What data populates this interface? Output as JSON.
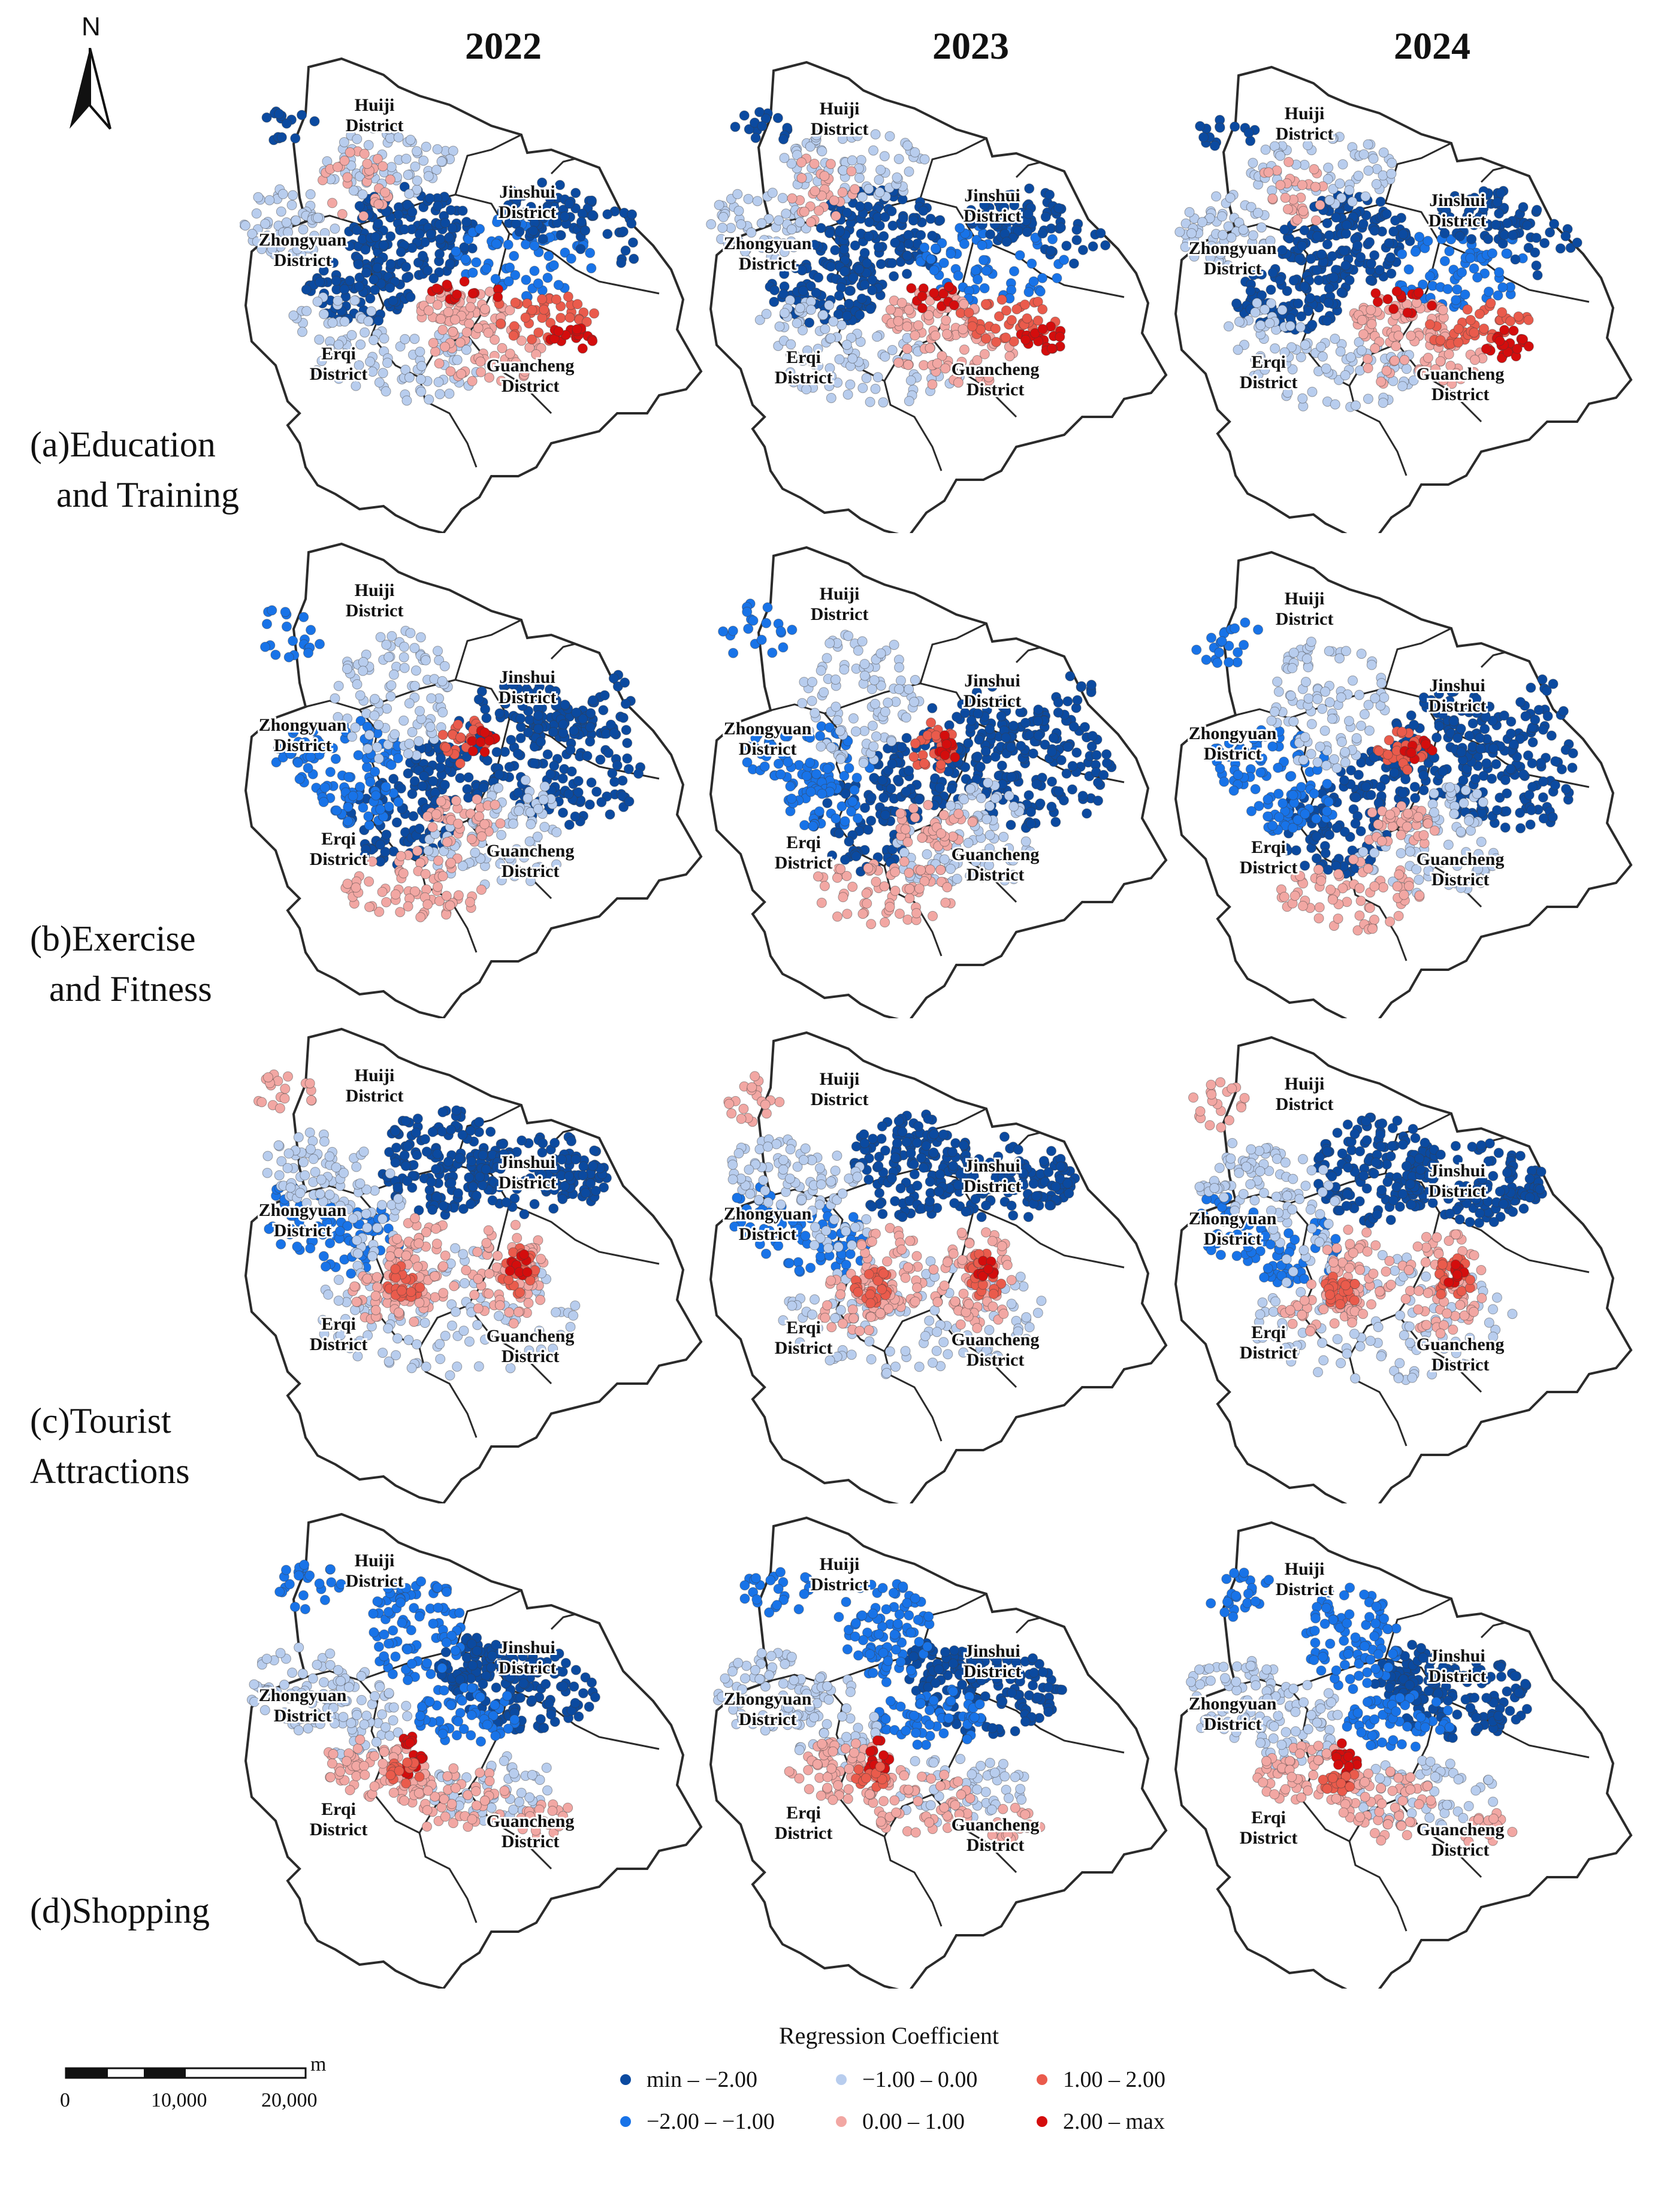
{
  "years": [
    "2022",
    "2023",
    "2024"
  ],
  "rows": [
    {
      "line1": "(a)Education",
      "line2": "and Training"
    },
    {
      "line1": "(b)Exercise",
      "line2": "and Fitness"
    },
    {
      "line1": "(c)Tourist",
      "line2": "Attractions"
    },
    {
      "line1": "(d)Shopping",
      "line2": ""
    }
  ],
  "districts": {
    "huiji": [
      "Huiji",
      "District"
    ],
    "jinshui": [
      "Jinshui",
      "District"
    ],
    "zhongyuan": [
      "Zhongyuan",
      "District"
    ],
    "erqi": [
      "Erqi",
      "District"
    ],
    "guancheng": [
      "Guancheng",
      "District"
    ]
  },
  "north": "N",
  "scale_bar": {
    "unit": "m",
    "labels": [
      "0",
      "10,000",
      "20,000"
    ]
  },
  "legend": {
    "title": "Regression Coefficient",
    "classes": [
      {
        "label": "min – −2.00",
        "color": "#0b4aa0"
      },
      {
        "label": "−2.00 – −1.00",
        "color": "#1873e8"
      },
      {
        "label": "−1.00 – 0.00",
        "color": "#b8cdee"
      },
      {
        "label": "0.00 – 1.00",
        "color": "#f2a7a3"
      },
      {
        "label": "1.00 – 2.00",
        "color": "#ea5b4c"
      },
      {
        "label": "2.00 – max",
        "color": "#d40d0d"
      }
    ]
  },
  "map_patterns": [
    [
      "education_2022",
      "education_2023",
      "education_2024"
    ],
    [
      "exercise_2022",
      "exercise_2023",
      "exercise_2024"
    ],
    [
      "tourist_2022",
      "tourist_2023",
      "tourist_2024"
    ],
    [
      "shopping_2022",
      "shopping_2023",
      "shopping_2024"
    ]
  ]
}
